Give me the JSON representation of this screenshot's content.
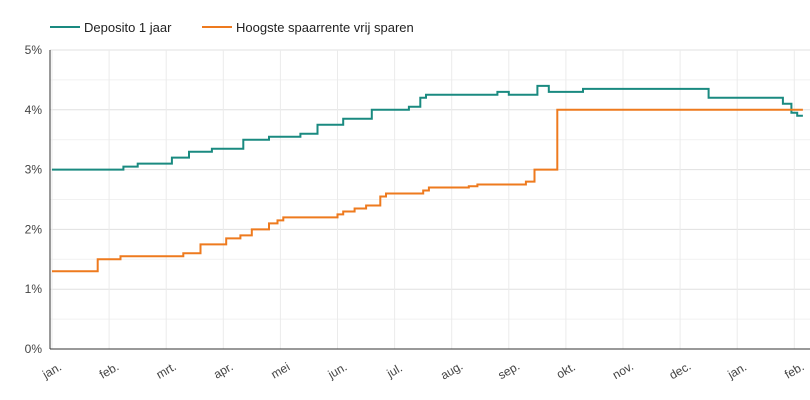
{
  "chart_data": {
    "type": "line",
    "title": "",
    "xlabel": "",
    "ylabel": "",
    "ylim": [
      0,
      5
    ],
    "grid": true,
    "legend_position": "top-left",
    "y_ticks": [
      "0%",
      "1%",
      "2%",
      "3%",
      "4%",
      "5%"
    ],
    "x_ticks": [
      "jan.",
      "feb.",
      "mrt.",
      "apr.",
      "mei",
      "jun.",
      "jul.",
      "aug.",
      "sep.",
      "okt.",
      "nov.",
      "dec.",
      "jan.",
      "feb."
    ],
    "series": [
      {
        "name": "Deposito 1 jaar",
        "color": "#1a8a80",
        "points": [
          [
            0,
            3.0
          ],
          [
            1.25,
            3.0
          ],
          [
            1.25,
            3.05
          ],
          [
            1.5,
            3.05
          ],
          [
            1.5,
            3.1
          ],
          [
            2.1,
            3.1
          ],
          [
            2.1,
            3.2
          ],
          [
            2.4,
            3.2
          ],
          [
            2.4,
            3.3
          ],
          [
            2.8,
            3.3
          ],
          [
            2.8,
            3.35
          ],
          [
            3.35,
            3.35
          ],
          [
            3.35,
            3.5
          ],
          [
            3.8,
            3.5
          ],
          [
            3.8,
            3.55
          ],
          [
            4.35,
            3.55
          ],
          [
            4.35,
            3.6
          ],
          [
            4.65,
            3.6
          ],
          [
            4.65,
            3.75
          ],
          [
            5.1,
            3.75
          ],
          [
            5.1,
            3.85
          ],
          [
            5.6,
            3.85
          ],
          [
            5.6,
            4.0
          ],
          [
            6.25,
            4.0
          ],
          [
            6.25,
            4.05
          ],
          [
            6.45,
            4.05
          ],
          [
            6.45,
            4.2
          ],
          [
            6.55,
            4.2
          ],
          [
            6.55,
            4.25
          ],
          [
            7.8,
            4.25
          ],
          [
            7.8,
            4.3
          ],
          [
            8.0,
            4.3
          ],
          [
            8.0,
            4.25
          ],
          [
            8.5,
            4.25
          ],
          [
            8.5,
            4.4
          ],
          [
            8.7,
            4.4
          ],
          [
            8.7,
            4.3
          ],
          [
            9.3,
            4.3
          ],
          [
            9.3,
            4.35
          ],
          [
            11.5,
            4.35
          ],
          [
            11.5,
            4.2
          ],
          [
            12.8,
            4.2
          ],
          [
            12.8,
            4.1
          ],
          [
            12.95,
            4.1
          ],
          [
            12.95,
            3.95
          ],
          [
            13.05,
            3.95
          ],
          [
            13.05,
            3.9
          ],
          [
            13.15,
            3.9
          ]
        ]
      },
      {
        "name": "Hoogste spaarrente vrij sparen",
        "color": "#ee7a1e",
        "points": [
          [
            0,
            1.3
          ],
          [
            0.8,
            1.3
          ],
          [
            0.8,
            1.5
          ],
          [
            1.2,
            1.5
          ],
          [
            1.2,
            1.55
          ],
          [
            2.3,
            1.55
          ],
          [
            2.3,
            1.6
          ],
          [
            2.6,
            1.6
          ],
          [
            2.6,
            1.75
          ],
          [
            3.05,
            1.75
          ],
          [
            3.05,
            1.85
          ],
          [
            3.3,
            1.85
          ],
          [
            3.3,
            1.9
          ],
          [
            3.5,
            1.9
          ],
          [
            3.5,
            2.0
          ],
          [
            3.8,
            2.0
          ],
          [
            3.8,
            2.1
          ],
          [
            3.95,
            2.1
          ],
          [
            3.95,
            2.15
          ],
          [
            4.05,
            2.15
          ],
          [
            4.05,
            2.2
          ],
          [
            5.0,
            2.2
          ],
          [
            5.0,
            2.25
          ],
          [
            5.1,
            2.25
          ],
          [
            5.1,
            2.3
          ],
          [
            5.3,
            2.3
          ],
          [
            5.3,
            2.35
          ],
          [
            5.5,
            2.35
          ],
          [
            5.5,
            2.4
          ],
          [
            5.75,
            2.4
          ],
          [
            5.75,
            2.55
          ],
          [
            5.85,
            2.55
          ],
          [
            5.85,
            2.6
          ],
          [
            6.5,
            2.6
          ],
          [
            6.5,
            2.65
          ],
          [
            6.6,
            2.65
          ],
          [
            6.6,
            2.7
          ],
          [
            7.3,
            2.7
          ],
          [
            7.3,
            2.72
          ],
          [
            7.45,
            2.72
          ],
          [
            7.45,
            2.75
          ],
          [
            8.3,
            2.75
          ],
          [
            8.3,
            2.8
          ],
          [
            8.45,
            2.8
          ],
          [
            8.45,
            3.0
          ],
          [
            8.85,
            3.0
          ],
          [
            8.85,
            4.0
          ],
          [
            13.15,
            4.0
          ]
        ]
      }
    ]
  }
}
